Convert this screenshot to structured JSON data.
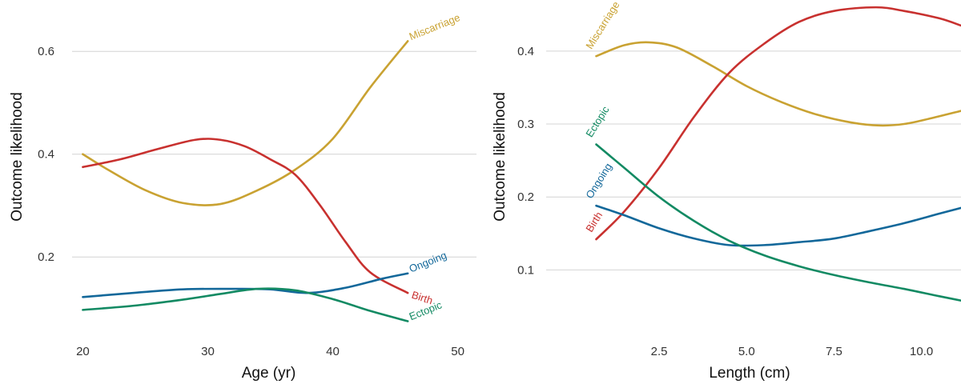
{
  "colors": {
    "Miscarriage": "#c9a232",
    "Birth": "#c8312f",
    "Ongoing": "#13689a",
    "Ectopic": "#138a63"
  },
  "chart_data": [
    {
      "type": "line",
      "xlabel": "Age (yr)",
      "ylabel": "Outcome likelihood",
      "xlim": [
        18.5,
        51.5
      ],
      "ylim": [
        0.04,
        0.7
      ],
      "xticks": [
        20,
        30,
        40,
        50
      ],
      "yticks": [
        0.2,
        0.4,
        0.6
      ],
      "xtick_labels": [
        "20",
        "30",
        "40",
        "50"
      ],
      "ytick_labels": [
        "0.2",
        "0.4",
        "0.6"
      ],
      "grid": true,
      "series": [
        {
          "name": "Miscarriage",
          "x": [
            20,
            22,
            25,
            28,
            31,
            34,
            37,
            40,
            43,
            46
          ],
          "y": [
            0.4,
            0.37,
            0.33,
            0.305,
            0.303,
            0.33,
            0.37,
            0.43,
            0.53,
            0.62
          ]
        },
        {
          "name": "Birth",
          "x": [
            20,
            23,
            26,
            29,
            31,
            33,
            35,
            37,
            39,
            41,
            43,
            46
          ],
          "y": [
            0.375,
            0.39,
            0.41,
            0.428,
            0.428,
            0.415,
            0.39,
            0.36,
            0.3,
            0.23,
            0.17,
            0.13
          ]
        },
        {
          "name": "Ongoing",
          "x": [
            20,
            24,
            28,
            32,
            35,
            38,
            41,
            44,
            46
          ],
          "y": [
            0.122,
            0.13,
            0.137,
            0.138,
            0.137,
            0.13,
            0.14,
            0.158,
            0.168
          ]
        },
        {
          "name": "Ectopic",
          "x": [
            20,
            24,
            28,
            31,
            34,
            37,
            40,
            43,
            46
          ],
          "y": [
            0.097,
            0.105,
            0.117,
            0.128,
            0.138,
            0.135,
            0.118,
            0.095,
            0.075
          ]
        }
      ]
    },
    {
      "type": "line",
      "xlabel": "Length (cm)",
      "ylabel": "Outcome likelihood",
      "xlim": [
        -0.96,
        11.13
      ],
      "ylim": [
        0.005,
        0.47
      ],
      "xticks": [
        2.5,
        5.0,
        7.5,
        10.0
      ],
      "yticks": [
        0.1,
        0.2,
        0.3,
        0.4
      ],
      "xtick_labels": [
        "2.5",
        "5.0",
        "7.5",
        "10.0"
      ],
      "ytick_labels": [
        "0.1",
        "0.2",
        "0.3",
        "0.4"
      ],
      "grid": true,
      "series": [
        {
          "name": "Miscarriage",
          "x": [
            0.7,
            1.5,
            2.2,
            3.0,
            4.0,
            5.0,
            6.0,
            7.0,
            8.0,
            8.8,
            9.5,
            10.2,
            11.13
          ],
          "y": [
            0.393,
            0.408,
            0.412,
            0.405,
            0.38,
            0.352,
            0.33,
            0.313,
            0.302,
            0.298,
            0.3,
            0.307,
            0.318
          ]
        },
        {
          "name": "Birth",
          "x": [
            0.7,
            1.5,
            2.5,
            3.5,
            4.5,
            5.5,
            6.5,
            7.5,
            8.7,
            9.5,
            10.5,
            11.13
          ],
          "y": [
            0.142,
            0.18,
            0.24,
            0.31,
            0.37,
            0.41,
            0.44,
            0.455,
            0.46,
            0.455,
            0.445,
            0.435
          ]
        },
        {
          "name": "Ongoing",
          "x": [
            0.7,
            1.5,
            2.5,
            3.5,
            4.5,
            5.5,
            6.5,
            7.5,
            8.5,
            9.5,
            10.5,
            11.13
          ],
          "y": [
            0.188,
            0.175,
            0.157,
            0.143,
            0.134,
            0.134,
            0.138,
            0.143,
            0.153,
            0.164,
            0.177,
            0.185
          ]
        },
        {
          "name": "Ectopic",
          "x": [
            0.7,
            1.5,
            2.5,
            3.5,
            4.5,
            5.5,
            6.5,
            7.5,
            8.5,
            9.5,
            10.5,
            11.13
          ],
          "y": [
            0.272,
            0.24,
            0.2,
            0.167,
            0.14,
            0.12,
            0.105,
            0.093,
            0.083,
            0.074,
            0.064,
            0.058
          ]
        }
      ]
    }
  ]
}
